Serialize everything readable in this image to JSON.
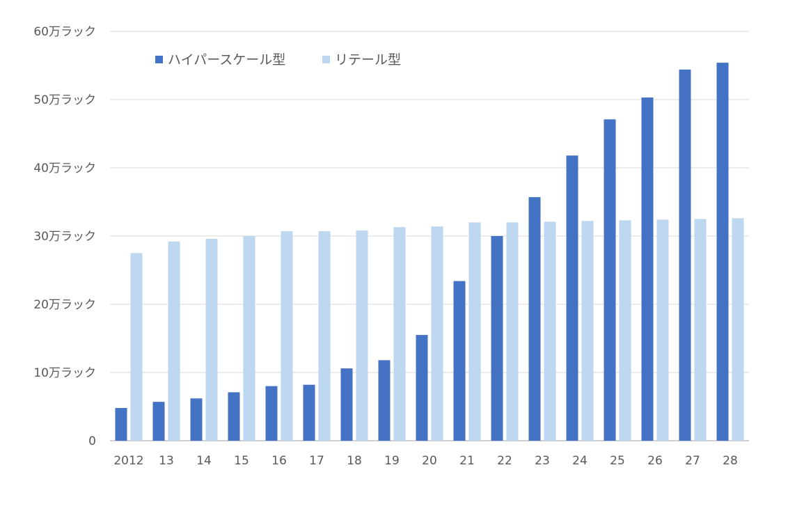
{
  "chart_data": {
    "type": "bar",
    "title": "",
    "xlabel": "",
    "ylabel": "",
    "categories": [
      "2012",
      "13",
      "14",
      "15",
      "16",
      "17",
      "18",
      "19",
      "20",
      "21",
      "22",
      "23",
      "24",
      "25",
      "26",
      "27",
      "28"
    ],
    "series": [
      {
        "name": "ハイパースケール型",
        "color": "#4472C4",
        "values": [
          48000,
          57000,
          62000,
          71000,
          80000,
          82000,
          106000,
          118000,
          155000,
          234000,
          300000,
          357000,
          418000,
          471000,
          503000,
          544000,
          554000
        ]
      },
      {
        "name": "リテール型",
        "color": "#BDD7EE",
        "values": [
          275000,
          292000,
          296000,
          300000,
          307000,
          307000,
          308000,
          313000,
          314000,
          320000,
          320000,
          321000,
          322000,
          323000,
          324000,
          325000,
          326000
        ]
      }
    ],
    "ylim": [
      0,
      600000
    ],
    "yticks": [
      0,
      100000,
      200000,
      300000,
      400000,
      500000,
      600000
    ],
    "ytick_labels": [
      "0",
      "10万ラック",
      "20万ラック",
      "30万ラック",
      "40万ラック",
      "50万ラック",
      "60万ラック"
    ],
    "grid": true,
    "legend_position": "top-left"
  }
}
